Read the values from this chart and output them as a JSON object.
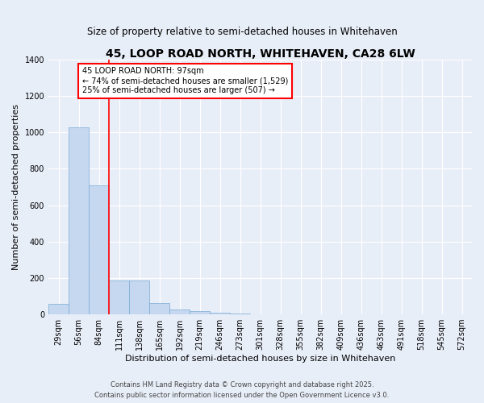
{
  "title": "45, LOOP ROAD NORTH, WHITEHAVEN, CA28 6LW",
  "subtitle": "Size of property relative to semi-detached houses in Whitehaven",
  "xlabel": "Distribution of semi-detached houses by size in Whitehaven",
  "ylabel": "Number of semi-detached properties",
  "bar_color": "#c5d8f0",
  "bar_edge_color": "#7aaad4",
  "background_color": "#e8eef8",
  "grid_color": "#ffffff",
  "categories": [
    "29sqm",
    "56sqm",
    "84sqm",
    "111sqm",
    "138sqm",
    "165sqm",
    "192sqm",
    "219sqm",
    "246sqm",
    "273sqm",
    "301sqm",
    "328sqm",
    "355sqm",
    "382sqm",
    "409sqm",
    "436sqm",
    "463sqm",
    "491sqm",
    "518sqm",
    "545sqm",
    "572sqm"
  ],
  "values": [
    58,
    1030,
    710,
    185,
    185,
    62,
    25,
    17,
    10,
    5,
    0,
    0,
    0,
    0,
    0,
    0,
    0,
    0,
    0,
    0,
    0
  ],
  "ylim": [
    0,
    1400
  ],
  "yticks": [
    0,
    200,
    400,
    600,
    800,
    1000,
    1200,
    1400
  ],
  "red_line_x": 2.5,
  "annotation_text": "45 LOOP ROAD NORTH: 97sqm\n← 74% of semi-detached houses are smaller (1,529)\n25% of semi-detached houses are larger (507) →",
  "footer_line1": "Contains HM Land Registry data © Crown copyright and database right 2025.",
  "footer_line2": "Contains public sector information licensed under the Open Government Licence v3.0.",
  "title_fontsize": 10,
  "subtitle_fontsize": 8.5,
  "axis_label_fontsize": 8,
  "tick_fontsize": 7,
  "annotation_fontsize": 7,
  "footer_fontsize": 6
}
